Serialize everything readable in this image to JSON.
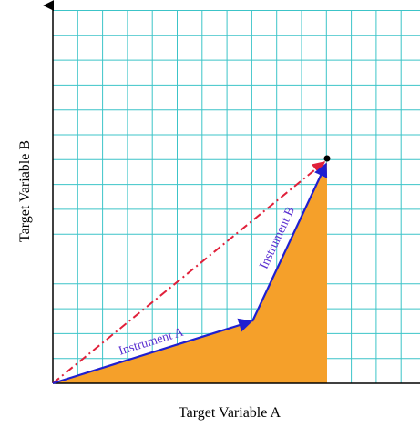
{
  "axes": {
    "x_label": "Target Variable A",
    "y_label": "Target Variable B"
  },
  "vectors": [
    {
      "label": "Instrument A"
    },
    {
      "label": "Instrument B"
    }
  ]
}
